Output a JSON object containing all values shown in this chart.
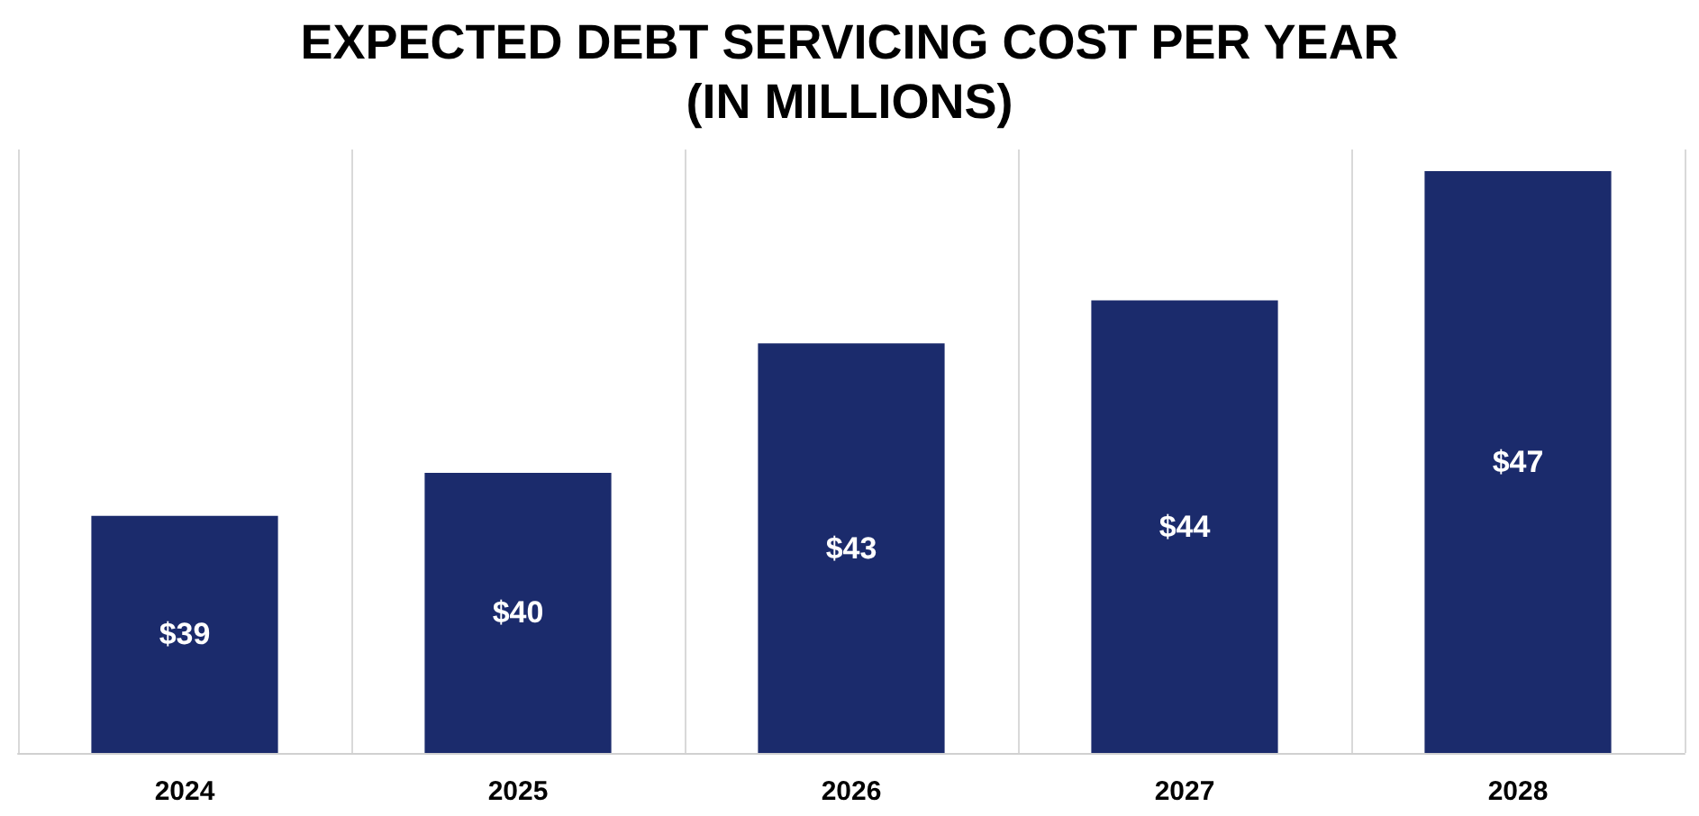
{
  "chart_data": {
    "type": "bar",
    "title": "EXPECTED DEBT SERVICING COST PER YEAR\n(IN MILLIONS)",
    "categories": [
      "2024",
      "2025",
      "2026",
      "2027",
      "2028"
    ],
    "values": [
      39,
      40,
      43,
      44,
      47
    ],
    "value_labels": [
      "$39",
      "$40",
      "$43",
      "$44",
      "$47"
    ],
    "color": "#1b2b6c",
    "ylim": [
      33.5,
      47.5
    ],
    "grid": "x",
    "tick_labels": "x"
  }
}
